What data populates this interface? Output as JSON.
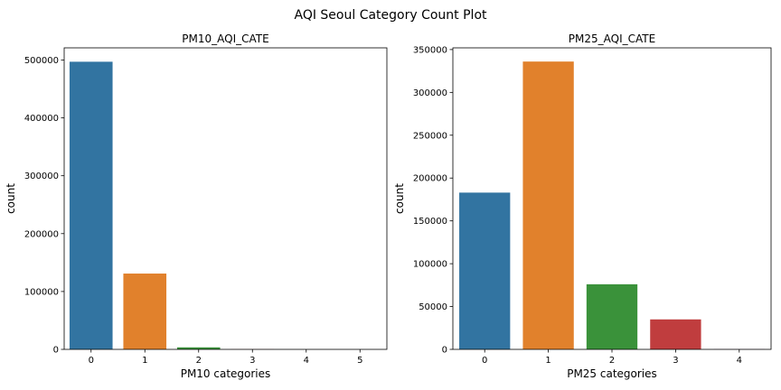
{
  "figure": {
    "title": "AQI Seoul Category Count Plot"
  },
  "chart_data": [
    {
      "type": "bar",
      "title": "PM10_AQI_CATE",
      "xlabel": "PM10 categories",
      "ylabel": "count",
      "categories": [
        "0",
        "1",
        "2",
        "3",
        "4",
        "5"
      ],
      "values": [
        497000,
        131000,
        3500,
        200,
        100,
        50
      ],
      "colors": [
        "#3274a1",
        "#e1812c",
        "#3a923a",
        "#c03d3e",
        "#9372b2",
        "#845b53"
      ],
      "ylim": [
        0,
        521000
      ],
      "yticks": [
        0,
        100000,
        200000,
        300000,
        400000,
        500000
      ],
      "ytick_labels": [
        "0",
        "100000",
        "200000",
        "300000",
        "400000",
        "500000"
      ],
      "grid": false,
      "legend": "none"
    },
    {
      "type": "bar",
      "title": "PM25_AQI_CATE",
      "xlabel": "PM25 categories",
      "ylabel": "count",
      "categories": [
        "0",
        "1",
        "2",
        "3",
        "4"
      ],
      "values": [
        183000,
        336000,
        76000,
        35000,
        300
      ],
      "colors": [
        "#3274a1",
        "#e1812c",
        "#3a923a",
        "#c03d3e",
        "#9372b2"
      ],
      "ylim": [
        0,
        352000
      ],
      "yticks": [
        0,
        50000,
        100000,
        150000,
        200000,
        250000,
        300000,
        350000
      ],
      "ytick_labels": [
        "0",
        "50000",
        "100000",
        "150000",
        "200000",
        "250000",
        "300000",
        "350000"
      ],
      "grid": false,
      "legend": "none"
    }
  ]
}
